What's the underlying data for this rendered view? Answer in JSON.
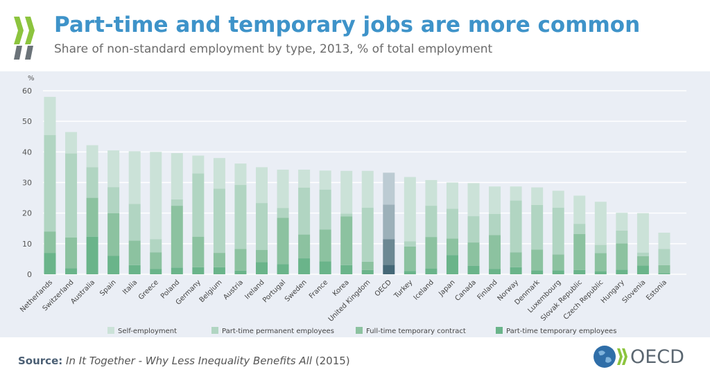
{
  "header": {
    "title": "Part-time and temporary jobs are more common",
    "subtitle": "Share of non-standard employment by type, 2013, % of total employment"
  },
  "footer": {
    "source_label": "Source:",
    "source_text": "In It Together - Why Less Inequality Benefits All",
    "source_year": "(2015)",
    "logo_text": "OECD"
  },
  "chart_data": {
    "type": "bar",
    "stacked": true,
    "title": "",
    "ylabel": "%",
    "ylim": [
      0,
      60
    ],
    "yticks": [
      0,
      10,
      20,
      30,
      40,
      50,
      60
    ],
    "grid": true,
    "legend_position": "bottom",
    "categories": [
      "Netherlands",
      "Switzerland",
      "Australia",
      "Spain",
      "Italia",
      "Greece",
      "Poland",
      "Germany",
      "Belgium",
      "Austria",
      "Ireland",
      "Portugal",
      "Sweden",
      "France",
      "Korea",
      "United Kingdom",
      "OECD",
      "Turkey",
      "Iceland",
      "Japan",
      "Canada",
      "Finland",
      "Norway",
      "Denmark",
      "Luxembourg",
      "Slovak Republic",
      "Czech Republic",
      "Hungary",
      "Slovenia",
      "Estonia"
    ],
    "highlight": "OECD",
    "series": [
      {
        "name": "Part-time temporary employees",
        "color": "#6ab48a",
        "highlight_color": "#456877",
        "values": [
          7,
          2,
          12.3,
          6,
          3,
          1.7,
          2.2,
          2.3,
          2.3,
          1.2,
          4,
          3.3,
          5.2,
          4.2,
          3,
          1.4,
          3.1,
          1.1,
          1.9,
          6.3,
          2.8,
          1.7,
          2.3,
          1.3,
          1.3,
          1.4,
          1,
          1.5,
          2.9,
          0.4
        ]
      },
      {
        "name": "Full-time temporary contract",
        "color": "#8cc2a0",
        "highlight_color": "#6c8893",
        "values": [
          7,
          10,
          12.7,
          14,
          8,
          5.5,
          20.2,
          10,
          4.7,
          7.1,
          4,
          15.2,
          7.8,
          10.4,
          15.9,
          2.7,
          8.4,
          8,
          10.3,
          5.4,
          7.6,
          11.1,
          4.9,
          6.8,
          5.2,
          11.8,
          5.9,
          8.6,
          3,
          2.6
        ]
      },
      {
        "name": "Part-time permanent employees",
        "color": "#b1d5c2",
        "highlight_color": "#9cb0b9",
        "values": [
          31.5,
          27.5,
          10,
          8.5,
          12,
          4.3,
          2.1,
          20.7,
          21,
          20.9,
          15.3,
          3.2,
          15.3,
          13.1,
          0.9,
          17.7,
          11.3,
          1.7,
          10.2,
          9.7,
          8.6,
          6.9,
          16.9,
          14.6,
          15.3,
          3.3,
          2.7,
          4.2,
          1.2,
          5.3
        ]
      },
      {
        "name": "Self-employment",
        "color": "#cbe2d8",
        "highlight_color": "#bccbd3",
        "values": [
          12.5,
          7,
          7.2,
          12,
          17.2,
          28.5,
          15.1,
          5.8,
          10,
          7,
          11.7,
          12.5,
          5.9,
          6.2,
          14,
          12,
          10.4,
          21,
          8.4,
          8.6,
          10.8,
          9,
          4.6,
          5.7,
          5.5,
          9.2,
          14.1,
          5.8,
          12.9,
          5.3
        ]
      }
    ]
  }
}
